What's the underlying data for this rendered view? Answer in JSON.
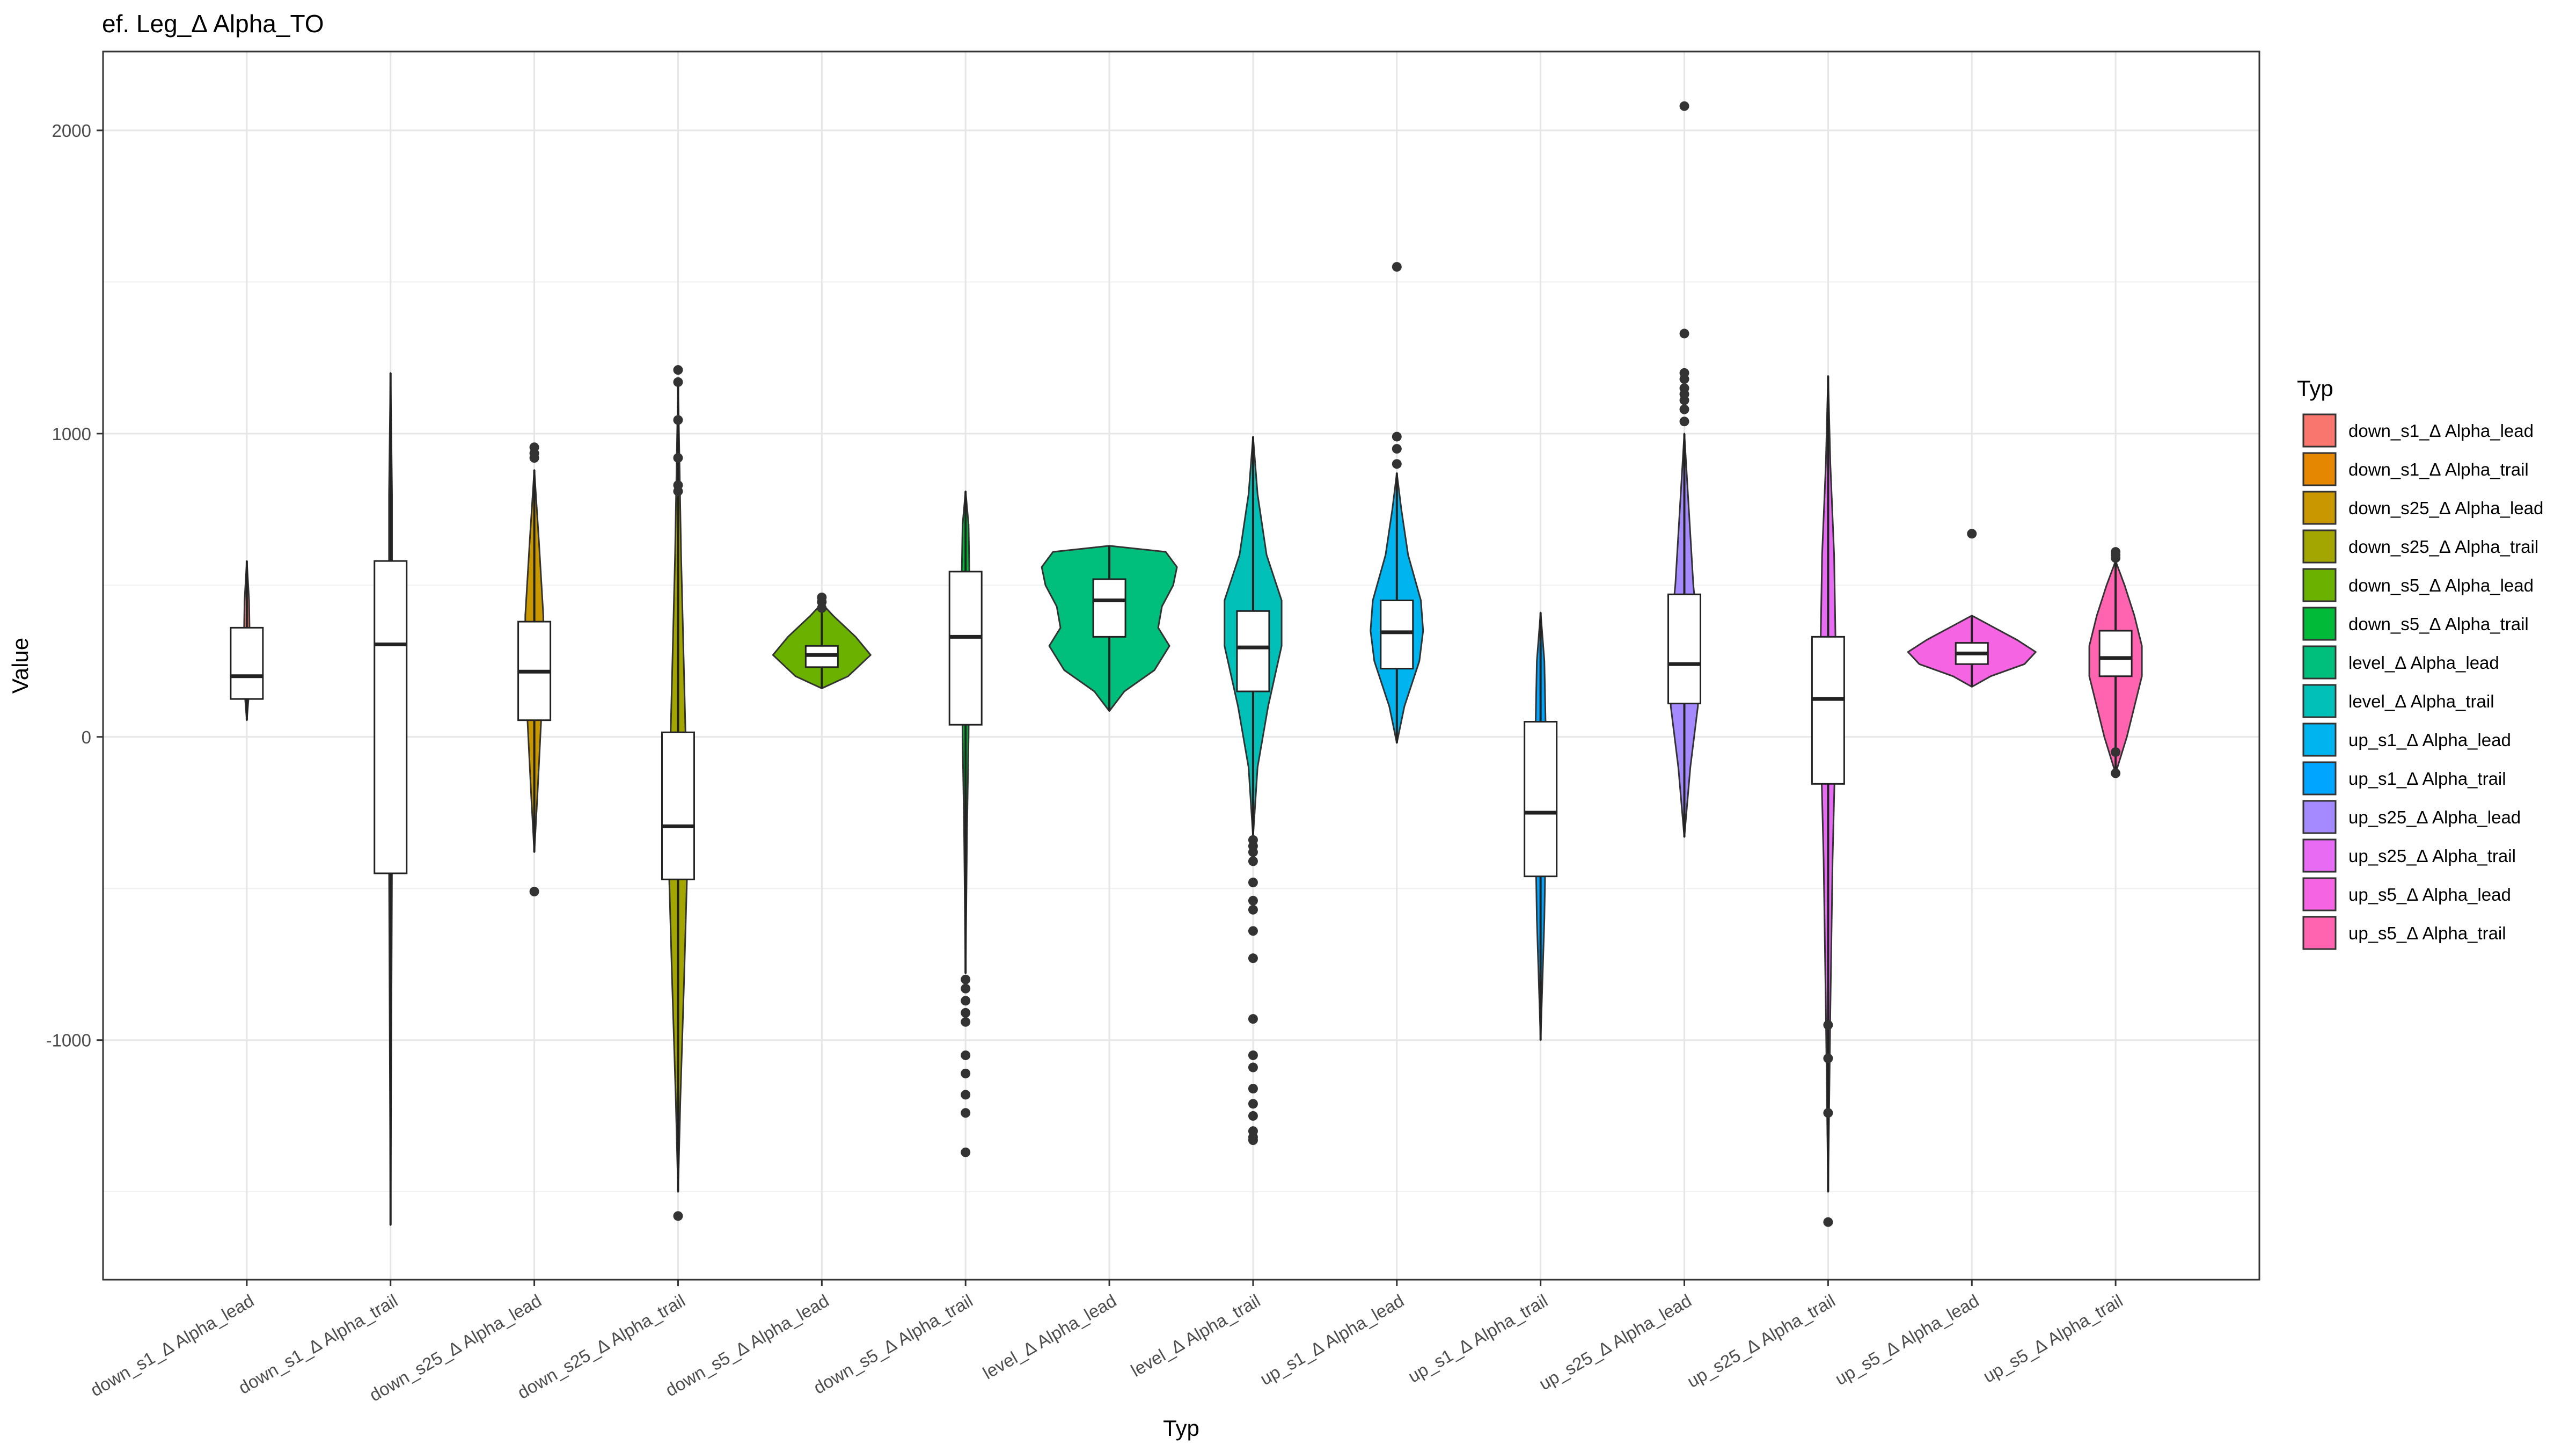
{
  "chart_data": {
    "type": "violin",
    "title": "ef. Leg_Δ Alpha_TO",
    "xlabel": "Typ",
    "ylabel": "Value",
    "ylim": [
      -1790,
      2260
    ],
    "yticks": [
      -1000,
      0,
      1000,
      2000
    ],
    "grid": true,
    "legend": {
      "title": "Typ",
      "placement": "right"
    },
    "categories": [
      {
        "label": "down_s1_Δ Alpha_lead",
        "color": "#F8766D",
        "min": 55,
        "q1": 125,
        "median": 200,
        "q3": 360,
        "max": 580,
        "shape": [
          [
            55,
            0.0
          ],
          [
            150,
            0.03
          ],
          [
            300,
            0.04
          ],
          [
            450,
            0.03
          ],
          [
            580,
            0.0
          ]
        ],
        "outliers": []
      },
      {
        "label": "down_s1_Δ Alpha_trail",
        "color": "#E58700",
        "min": -1610,
        "q1": -450,
        "median": 305,
        "q3": 580,
        "max": 1200,
        "shape": [
          [
            -1610,
            0.0
          ],
          [
            -1000,
            0.01
          ],
          [
            -400,
            0.02
          ],
          [
            300,
            0.02
          ],
          [
            800,
            0.02
          ],
          [
            1200,
            0.0
          ]
        ],
        "outliers": []
      },
      {
        "label": "down_s25_Δ Alpha_lead",
        "color": "#C99800",
        "min": -380,
        "q1": 55,
        "median": 215,
        "q3": 380,
        "max": 880,
        "shape": [
          [
            -380,
            0.0
          ],
          [
            -200,
            0.04
          ],
          [
            0,
            0.08
          ],
          [
            200,
            0.12
          ],
          [
            400,
            0.12
          ],
          [
            650,
            0.06
          ],
          [
            880,
            0.0
          ]
        ],
        "outliers": [
          -510,
          920,
          935,
          955
        ]
      },
      {
        "label": "down_s25_Δ Alpha_trail",
        "color": "#A3A500",
        "min": -1500,
        "q1": -470,
        "median": -295,
        "q3": 15,
        "max": 1170,
        "shape": [
          [
            -1500,
            0.0
          ],
          [
            -1200,
            0.03
          ],
          [
            -800,
            0.08
          ],
          [
            -450,
            0.12
          ],
          [
            -200,
            0.12
          ],
          [
            200,
            0.08
          ],
          [
            600,
            0.04
          ],
          [
            1170,
            0.0
          ]
        ],
        "outliers": [
          -1580,
          810,
          830,
          920,
          1045,
          1170,
          1210
        ]
      },
      {
        "label": "down_s5_Δ Alpha_lead",
        "color": "#6BB100",
        "min": 160,
        "q1": 230,
        "median": 270,
        "q3": 300,
        "max": 440,
        "shape": [
          [
            160,
            0.0
          ],
          [
            200,
            0.35
          ],
          [
            270,
            0.65
          ],
          [
            330,
            0.45
          ],
          [
            400,
            0.15
          ],
          [
            440,
            0.0
          ]
        ],
        "outliers": [
          425,
          445,
          460
        ]
      },
      {
        "label": "down_s5_Δ Alpha_trail",
        "color": "#00BA38",
        "min": -780,
        "q1": 40,
        "median": 330,
        "q3": 545,
        "max": 810,
        "shape": [
          [
            -780,
            0.0
          ],
          [
            -300,
            0.02
          ],
          [
            0,
            0.04
          ],
          [
            300,
            0.05
          ],
          [
            550,
            0.05
          ],
          [
            700,
            0.04
          ],
          [
            810,
            0.0
          ]
        ],
        "outliers": [
          -800,
          -830,
          -870,
          -910,
          -940,
          -1050,
          -1110,
          -1180,
          -1240,
          -1370
        ]
      },
      {
        "label": "level_Δ Alpha_lead",
        "color": "#00BF7D",
        "min": 85,
        "q1": 330,
        "median": 450,
        "q3": 520,
        "max": 630,
        "shape": [
          [
            85,
            0.0
          ],
          [
            150,
            0.2
          ],
          [
            220,
            0.6
          ],
          [
            300,
            0.8
          ],
          [
            360,
            0.65
          ],
          [
            430,
            0.7
          ],
          [
            500,
            0.85
          ],
          [
            560,
            0.9
          ],
          [
            610,
            0.75
          ],
          [
            630,
            0.0
          ]
        ],
        "outliers": []
      },
      {
        "label": "level_Δ Alpha_trail",
        "color": "#00C0B8",
        "min": -330,
        "q1": 150,
        "median": 295,
        "q3": 415,
        "max": 990,
        "shape": [
          [
            -330,
            0.0
          ],
          [
            -100,
            0.06
          ],
          [
            100,
            0.2
          ],
          [
            300,
            0.38
          ],
          [
            450,
            0.38
          ],
          [
            600,
            0.18
          ],
          [
            800,
            0.06
          ],
          [
            990,
            0.0
          ]
        ],
        "outliers": [
          -340,
          -360,
          -380,
          -410,
          -480,
          -540,
          -570,
          -640,
          -730,
          -930,
          -1050,
          -1090,
          -1160,
          -1210,
          -1250,
          -1300,
          -1320,
          -1330
        ]
      },
      {
        "label": "up_s1_Δ Alpha_lead",
        "color": "#00B4EF",
        "min": -20,
        "q1": 225,
        "median": 345,
        "q3": 450,
        "max": 870,
        "shape": [
          [
            -20,
            0.0
          ],
          [
            100,
            0.1
          ],
          [
            250,
            0.3
          ],
          [
            350,
            0.35
          ],
          [
            450,
            0.32
          ],
          [
            600,
            0.15
          ],
          [
            750,
            0.06
          ],
          [
            870,
            0.0
          ]
        ],
        "outliers": [
          900,
          950,
          990,
          1550
        ]
      },
      {
        "label": "up_s1_Δ Alpha_trail",
        "color": "#00A5FF",
        "min": -1000,
        "q1": -460,
        "median": -250,
        "q3": 50,
        "max": 410,
        "shape": [
          [
            -1000,
            0.0
          ],
          [
            -600,
            0.05
          ],
          [
            -300,
            0.07
          ],
          [
            0,
            0.07
          ],
          [
            250,
            0.05
          ],
          [
            410,
            0.0
          ]
        ],
        "outliers": []
      },
      {
        "label": "up_s25_Δ Alpha_lead",
        "color": "#A58AFF",
        "min": -330,
        "q1": 110,
        "median": 240,
        "q3": 470,
        "max": 1000,
        "shape": [
          [
            -330,
            0.0
          ],
          [
            -100,
            0.08
          ],
          [
            100,
            0.18
          ],
          [
            300,
            0.2
          ],
          [
            500,
            0.12
          ],
          [
            750,
            0.06
          ],
          [
            1000,
            0.0
          ]
        ],
        "outliers": [
          1040,
          1080,
          1110,
          1130,
          1150,
          1180,
          1200,
          1330,
          2080
        ]
      },
      {
        "label": "up_s25_Δ Alpha_trail",
        "color": "#E76BF3",
        "min": -1500,
        "q1": -155,
        "median": 125,
        "q3": 330,
        "max": 1190,
        "shape": [
          [
            -1500,
            0.0
          ],
          [
            -900,
            0.03
          ],
          [
            -400,
            0.06
          ],
          [
            0,
            0.1
          ],
          [
            300,
            0.1
          ],
          [
            600,
            0.08
          ],
          [
            900,
            0.03
          ],
          [
            1190,
            0.0
          ]
        ],
        "outliers": [
          -950,
          -1060,
          -1240,
          -1600
        ]
      },
      {
        "label": "up_s5_Δ Alpha_lead",
        "color": "#F564E3",
        "min": 165,
        "q1": 240,
        "median": 275,
        "q3": 310,
        "max": 400,
        "shape": [
          [
            165,
            0.0
          ],
          [
            200,
            0.25
          ],
          [
            240,
            0.7
          ],
          [
            280,
            0.85
          ],
          [
            320,
            0.6
          ],
          [
            360,
            0.3
          ],
          [
            400,
            0.0
          ]
        ],
        "outliers": [
          670
        ]
      },
      {
        "label": "up_s5_Δ Alpha_trail",
        "color": "#FF64B0",
        "min": -120,
        "q1": 200,
        "median": 260,
        "q3": 350,
        "max": 580,
        "shape": [
          [
            -120,
            0.0
          ],
          [
            0,
            0.15
          ],
          [
            100,
            0.25
          ],
          [
            200,
            0.35
          ],
          [
            300,
            0.35
          ],
          [
            400,
            0.25
          ],
          [
            500,
            0.12
          ],
          [
            580,
            0.0
          ]
        ],
        "outliers": [
          -50,
          -120,
          590,
          600,
          610
        ]
      }
    ]
  }
}
